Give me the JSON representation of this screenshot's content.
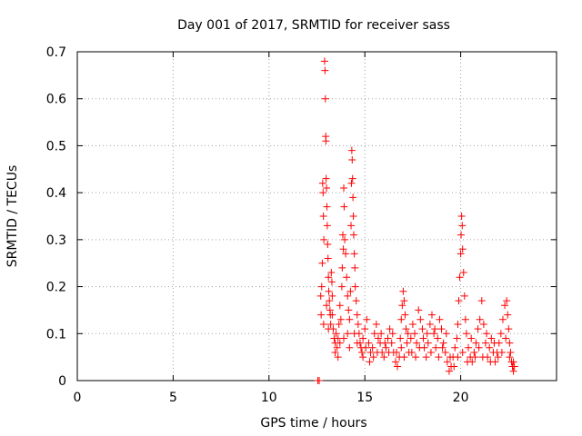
{
  "chart_data": {
    "type": "scatter",
    "title": "Day 001 of 2017, SRMTID for receiver sass",
    "xlabel": "GPS time / hours",
    "ylabel": "SRMTID / TECUs",
    "xlim": [
      0,
      25
    ],
    "ylim": [
      0,
      0.7
    ],
    "xticks": [
      0,
      5,
      10,
      15,
      20
    ],
    "yticks": [
      0,
      0.1,
      0.2,
      0.3,
      0.4,
      0.5,
      0.6,
      0.7
    ],
    "xtick_labels": [
      "0",
      "5",
      "10",
      "15",
      "20"
    ],
    "ytick_labels": [
      "0",
      "0.1",
      "0.2",
      "0.3",
      "0.4",
      "0.5",
      "0.6",
      "0.7"
    ],
    "grid": true,
    "marker": "+",
    "color": "#ff0000",
    "series": [
      {
        "name": "SRMTID",
        "points": [
          [
            12.55,
            0.0
          ],
          [
            12.62,
            0.0
          ],
          [
            12.7,
            0.18
          ],
          [
            12.72,
            0.14
          ],
          [
            12.75,
            0.2
          ],
          [
            12.78,
            0.25
          ],
          [
            12.8,
            0.42
          ],
          [
            12.82,
            0.4
          ],
          [
            12.84,
            0.35
          ],
          [
            12.86,
            0.3
          ],
          [
            12.9,
            0.68
          ],
          [
            12.92,
            0.66
          ],
          [
            12.94,
            0.6
          ],
          [
            12.96,
            0.52
          ],
          [
            12.97,
            0.51
          ],
          [
            12.98,
            0.43
          ],
          [
            13.0,
            0.41
          ],
          [
            13.02,
            0.37
          ],
          [
            13.04,
            0.33
          ],
          [
            13.06,
            0.29
          ],
          [
            13.08,
            0.26
          ],
          [
            13.1,
            0.22
          ],
          [
            13.12,
            0.19
          ],
          [
            13.15,
            0.17
          ],
          [
            13.18,
            0.15
          ],
          [
            13.2,
            0.14
          ],
          [
            13.22,
            0.12
          ],
          [
            13.25,
            0.23
          ],
          [
            13.28,
            0.21
          ],
          [
            13.3,
            0.18
          ],
          [
            13.35,
            0.11
          ],
          [
            13.4,
            0.09
          ],
          [
            13.45,
            0.08
          ],
          [
            13.5,
            0.1
          ],
          [
            13.55,
            0.07
          ],
          [
            13.6,
            0.09
          ],
          [
            13.65,
            0.12
          ],
          [
            13.7,
            0.16
          ],
          [
            13.75,
            0.13
          ],
          [
            13.8,
            0.2
          ],
          [
            13.82,
            0.24
          ],
          [
            13.85,
            0.31
          ],
          [
            13.88,
            0.28
          ],
          [
            13.9,
            0.41
          ],
          [
            13.92,
            0.37
          ],
          [
            13.95,
            0.3
          ],
          [
            14.0,
            0.27
          ],
          [
            14.05,
            0.22
          ],
          [
            14.1,
            0.18
          ],
          [
            14.15,
            0.15
          ],
          [
            14.2,
            0.13
          ],
          [
            14.25,
            0.19
          ],
          [
            14.28,
            0.33
          ],
          [
            14.3,
            0.42
          ],
          [
            14.32,
            0.49
          ],
          [
            14.34,
            0.47
          ],
          [
            14.36,
            0.43
          ],
          [
            14.38,
            0.39
          ],
          [
            14.4,
            0.35
          ],
          [
            14.42,
            0.31
          ],
          [
            14.45,
            0.27
          ],
          [
            14.48,
            0.24
          ],
          [
            14.5,
            0.2
          ],
          [
            14.55,
            0.17
          ],
          [
            14.6,
            0.14
          ],
          [
            14.65,
            0.12
          ],
          [
            14.7,
            0.1
          ],
          [
            14.75,
            0.08
          ],
          [
            14.8,
            0.07
          ],
          [
            14.85,
            0.06
          ],
          [
            14.9,
            0.09
          ],
          [
            15.0,
            0.11
          ],
          [
            15.1,
            0.13
          ],
          [
            15.2,
            0.08
          ],
          [
            15.3,
            0.06
          ],
          [
            15.4,
            0.07
          ],
          [
            15.5,
            0.1
          ],
          [
            15.6,
            0.12
          ],
          [
            15.7,
            0.09
          ],
          [
            15.8,
            0.08
          ],
          [
            15.9,
            0.06
          ],
          [
            16.0,
            0.05
          ],
          [
            16.1,
            0.07
          ],
          [
            16.2,
            0.09
          ],
          [
            16.3,
            0.11
          ],
          [
            16.4,
            0.08
          ],
          [
            16.5,
            0.06
          ],
          [
            16.6,
            0.04
          ],
          [
            16.7,
            0.03
          ],
          [
            16.8,
            0.05
          ],
          [
            16.85,
            0.09
          ],
          [
            16.9,
            0.13
          ],
          [
            16.95,
            0.16
          ],
          [
            17.0,
            0.19
          ],
          [
            17.05,
            0.17
          ],
          [
            17.1,
            0.14
          ],
          [
            17.15,
            0.11
          ],
          [
            17.2,
            0.08
          ],
          [
            17.3,
            0.06
          ],
          [
            17.4,
            0.09
          ],
          [
            17.5,
            0.12
          ],
          [
            17.6,
            0.1
          ],
          [
            17.7,
            0.08
          ],
          [
            17.8,
            0.15
          ],
          [
            17.9,
            0.13
          ],
          [
            18.0,
            0.11
          ],
          [
            18.1,
            0.07
          ],
          [
            18.2,
            0.05
          ],
          [
            18.3,
            0.08
          ],
          [
            18.4,
            0.12
          ],
          [
            18.5,
            0.14
          ],
          [
            18.6,
            0.1
          ],
          [
            18.7,
            0.07
          ],
          [
            18.8,
            0.09
          ],
          [
            18.9,
            0.13
          ],
          [
            19.0,
            0.11
          ],
          [
            19.1,
            0.08
          ],
          [
            19.2,
            0.06
          ],
          [
            19.3,
            0.04
          ],
          [
            19.4,
            0.02
          ],
          [
            19.5,
            0.03
          ],
          [
            19.6,
            0.05
          ],
          [
            19.7,
            0.07
          ],
          [
            19.8,
            0.09
          ],
          [
            19.85,
            0.12
          ],
          [
            19.9,
            0.17
          ],
          [
            19.95,
            0.22
          ],
          [
            20.0,
            0.27
          ],
          [
            20.02,
            0.31
          ],
          [
            20.05,
            0.35
          ],
          [
            20.08,
            0.33
          ],
          [
            20.1,
            0.28
          ],
          [
            20.15,
            0.23
          ],
          [
            20.2,
            0.18
          ],
          [
            20.25,
            0.13
          ],
          [
            20.3,
            0.1
          ],
          [
            20.4,
            0.07
          ],
          [
            20.5,
            0.05
          ],
          [
            20.6,
            0.04
          ],
          [
            20.7,
            0.06
          ],
          [
            20.8,
            0.08
          ],
          [
            20.9,
            0.11
          ],
          [
            21.0,
            0.13
          ],
          [
            21.1,
            0.17
          ],
          [
            21.2,
            0.12
          ],
          [
            21.3,
            0.08
          ],
          [
            21.4,
            0.05
          ],
          [
            21.5,
            0.07
          ],
          [
            21.6,
            0.09
          ],
          [
            21.7,
            0.06
          ],
          [
            21.8,
            0.04
          ],
          [
            21.9,
            0.06
          ],
          [
            22.0,
            0.08
          ],
          [
            22.1,
            0.1
          ],
          [
            22.2,
            0.13
          ],
          [
            22.3,
            0.16
          ],
          [
            22.4,
            0.17
          ],
          [
            22.45,
            0.14
          ],
          [
            22.5,
            0.11
          ],
          [
            22.55,
            0.08
          ],
          [
            22.6,
            0.06
          ],
          [
            22.65,
            0.04
          ],
          [
            22.7,
            0.03
          ],
          [
            22.75,
            0.02
          ],
          [
            22.8,
            0.03
          ],
          [
            12.85,
            0.12
          ],
          [
            13.0,
            0.16
          ],
          [
            13.1,
            0.11
          ],
          [
            13.3,
            0.14
          ],
          [
            13.45,
            0.06
          ],
          [
            13.6,
            0.05
          ],
          [
            13.7,
            0.08
          ],
          [
            13.9,
            0.09
          ],
          [
            14.1,
            0.1
          ],
          [
            14.2,
            0.07
          ],
          [
            14.45,
            0.1
          ],
          [
            14.6,
            0.08
          ],
          [
            14.9,
            0.05
          ],
          [
            15.05,
            0.07
          ],
          [
            15.25,
            0.04
          ],
          [
            15.45,
            0.05
          ],
          [
            15.65,
            0.06
          ],
          [
            15.85,
            0.1
          ],
          [
            16.05,
            0.08
          ],
          [
            16.25,
            0.06
          ],
          [
            16.45,
            0.1
          ],
          [
            16.65,
            0.06
          ],
          [
            16.9,
            0.07
          ],
          [
            17.05,
            0.05
          ],
          [
            17.25,
            0.1
          ],
          [
            17.45,
            0.06
          ],
          [
            17.65,
            0.05
          ],
          [
            17.85,
            0.07
          ],
          [
            18.05,
            0.09
          ],
          [
            18.25,
            0.1
          ],
          [
            18.45,
            0.06
          ],
          [
            18.65,
            0.11
          ],
          [
            18.85,
            0.05
          ],
          [
            19.05,
            0.07
          ],
          [
            19.25,
            0.1
          ],
          [
            19.45,
            0.05
          ],
          [
            19.65,
            0.03
          ],
          [
            19.85,
            0.05
          ],
          [
            20.1,
            0.06
          ],
          [
            20.35,
            0.04
          ],
          [
            20.55,
            0.09
          ],
          [
            20.75,
            0.05
          ],
          [
            20.95,
            0.07
          ],
          [
            21.15,
            0.05
          ],
          [
            21.35,
            0.1
          ],
          [
            21.55,
            0.04
          ],
          [
            21.75,
            0.08
          ],
          [
            21.95,
            0.05
          ],
          [
            22.15,
            0.06
          ],
          [
            22.35,
            0.09
          ],
          [
            22.55,
            0.05
          ],
          [
            22.75,
            0.04
          ]
        ]
      }
    ]
  }
}
